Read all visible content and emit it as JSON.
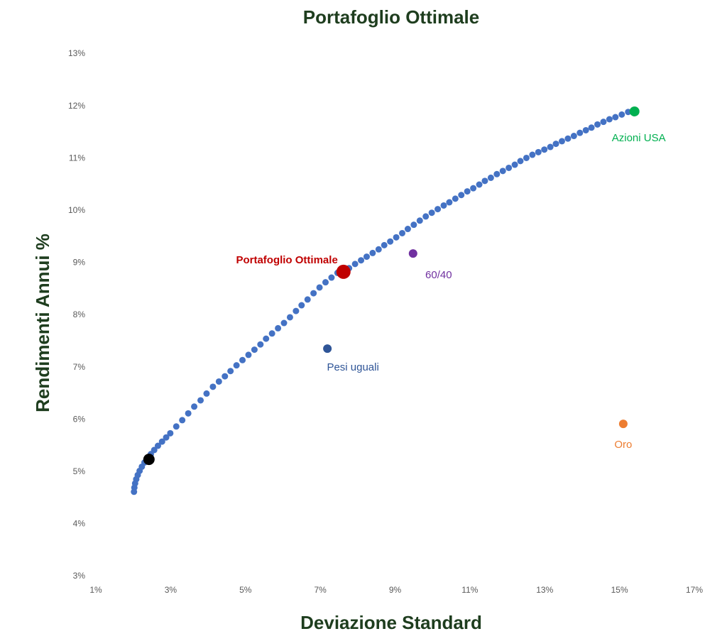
{
  "chart_data": {
    "type": "scatter",
    "title": "Portafoglio Ottimale",
    "xlabel": "Deviazione Standard",
    "ylabel": "Rendimenti Annui %",
    "xlim": [
      1,
      17
    ],
    "ylim": [
      3,
      13
    ],
    "xticks": [
      {
        "value": 1,
        "label": "1%"
      },
      {
        "value": 3,
        "label": "3%"
      },
      {
        "value": 5,
        "label": "5%"
      },
      {
        "value": 7,
        "label": "7%"
      },
      {
        "value": 9,
        "label": "9%"
      },
      {
        "value": 11,
        "label": "11%"
      },
      {
        "value": 13,
        "label": "13%"
      },
      {
        "value": 15,
        "label": "15%"
      },
      {
        "value": 17,
        "label": "17%"
      }
    ],
    "yticks": [
      {
        "value": 3,
        "label": "3%"
      },
      {
        "value": 4,
        "label": "4%"
      },
      {
        "value": 5,
        "label": "5%"
      },
      {
        "value": 6,
        "label": "6%"
      },
      {
        "value": 7,
        "label": "7%"
      },
      {
        "value": 8,
        "label": "8%"
      },
      {
        "value": 9,
        "label": "9%"
      },
      {
        "value": 10,
        "label": "10%"
      },
      {
        "value": 11,
        "label": "11%"
      },
      {
        "value": 12,
        "label": "12%"
      },
      {
        "value": 13,
        "label": "13%"
      }
    ],
    "grid": false,
    "series": [
      {
        "color": "#4472c4",
        "x": [
          2.02,
          2.03,
          2.05,
          2.08,
          2.12,
          2.17,
          2.23,
          2.3,
          2.38,
          2.47,
          2.56,
          2.66,
          2.77,
          2.88,
          2.99,
          3.15,
          3.31,
          3.47,
          3.63,
          3.8,
          3.96,
          4.13,
          4.29,
          4.45,
          4.6,
          4.76,
          4.92,
          5.08,
          5.24,
          5.4,
          5.55,
          5.71,
          5.87,
          6.03,
          6.19,
          6.35,
          6.5,
          6.66,
          6.82,
          6.98,
          7.14,
          7.3,
          7.46,
          7.62,
          7.77,
          7.93,
          8.09,
          8.24,
          8.4,
          8.56,
          8.71,
          8.87,
          9.03,
          9.19,
          9.34,
          9.5,
          9.66,
          9.82,
          9.98,
          10.14,
          10.3,
          10.45,
          10.61,
          10.77,
          10.93,
          11.09,
          11.25,
          11.4,
          11.56,
          11.72,
          11.88,
          12.04,
          12.2,
          12.35,
          12.51,
          12.67,
          12.83,
          12.99,
          13.15,
          13.3,
          13.46,
          13.62,
          13.78,
          13.94,
          14.1,
          14.25,
          14.41,
          14.57,
          14.73,
          14.89,
          15.06,
          15.23
        ],
        "values": [
          4.62,
          4.7,
          4.78,
          4.86,
          4.94,
          5.02,
          5.1,
          5.18,
          5.26,
          5.34,
          5.42,
          5.5,
          5.58,
          5.66,
          5.74,
          5.87,
          5.99,
          6.12,
          6.25,
          6.37,
          6.5,
          6.63,
          6.73,
          6.83,
          6.93,
          7.04,
          7.14,
          7.24,
          7.34,
          7.44,
          7.55,
          7.65,
          7.75,
          7.85,
          7.96,
          8.08,
          8.19,
          8.3,
          8.42,
          8.53,
          8.63,
          8.72,
          8.81,
          8.85,
          8.9,
          8.98,
          9.05,
          9.12,
          9.19,
          9.26,
          9.34,
          9.41,
          9.49,
          9.57,
          9.65,
          9.73,
          9.81,
          9.89,
          9.96,
          10.03,
          10.1,
          10.16,
          10.23,
          10.3,
          10.37,
          10.43,
          10.5,
          10.57,
          10.63,
          10.7,
          10.76,
          10.82,
          10.88,
          10.95,
          11.01,
          11.07,
          11.12,
          11.17,
          11.22,
          11.28,
          11.33,
          11.38,
          11.43,
          11.49,
          11.54,
          11.59,
          11.65,
          11.7,
          11.75,
          11.79,
          11.84,
          11.89
        ]
      },
      {
        "color": "#000000",
        "x": [
          2.42
        ],
        "values": [
          5.24
        ]
      },
      {
        "name": "Portafoglio Ottimale",
        "color": "#c00000",
        "x": [
          7.62
        ],
        "values": [
          8.83
        ]
      },
      {
        "name": "Azioni USA",
        "color": "#00b050",
        "x": [
          15.4
        ],
        "values": [
          11.9
        ]
      },
      {
        "name": "60/40",
        "color": "#7030a0",
        "x": [
          9.48
        ],
        "values": [
          9.18
        ]
      },
      {
        "name": "Pesi uguali",
        "color": "#2f5597",
        "x": [
          7.19
        ],
        "values": [
          7.36
        ]
      },
      {
        "name": "Oro",
        "color": "#ed7d31",
        "x": [
          15.1
        ],
        "values": [
          5.92
        ]
      }
    ]
  }
}
